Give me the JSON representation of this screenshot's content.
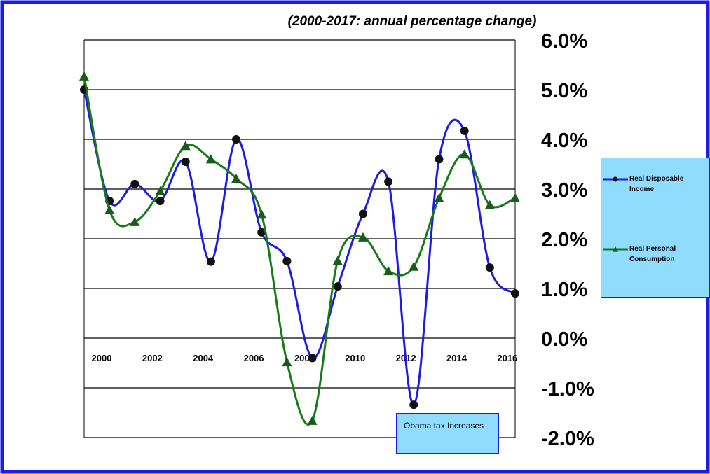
{
  "chart_data": {
    "type": "line",
    "title": "(2000-2017: annual percentage change)",
    "x": [
      2000,
      2001,
      2002,
      2003,
      2004,
      2005,
      2006,
      2007,
      2008,
      2009,
      2010,
      2011,
      2012,
      2013,
      2014,
      2015,
      2016,
      2017
    ],
    "xlim": [
      2000,
      2017
    ],
    "xticks": [
      2000,
      2002,
      2004,
      2006,
      2008,
      2010,
      2012,
      2014,
      2016
    ],
    "ylim": [
      -2,
      6
    ],
    "yticks": [
      {
        "value": -2,
        "label": "-2.0%"
      },
      {
        "value": -1,
        "label": "-1.0%"
      },
      {
        "value": 0,
        "label": "0.0%"
      },
      {
        "value": 1,
        "label": "1.0%"
      },
      {
        "value": 2,
        "label": "2.0%"
      },
      {
        "value": 3,
        "label": "3.0%"
      },
      {
        "value": 4,
        "label": "4.0%"
      },
      {
        "value": 5,
        "label": "5.0%"
      },
      {
        "value": 6,
        "label": "6.0%"
      }
    ],
    "grid": true,
    "legend": "right",
    "series": [
      {
        "name": "Real Disposable Income",
        "color": "#1c1ce6",
        "values": [
          5.0,
          2.76,
          3.1,
          2.76,
          3.55,
          1.54,
          4.0,
          2.13,
          1.55,
          -0.4,
          1.04,
          2.5,
          3.15,
          -1.34,
          3.6,
          4.17,
          1.42,
          0.9
        ]
      },
      {
        "name": "Real Personal Consumption",
        "color": "#1a7a1a",
        "values": [
          5.27,
          2.58,
          2.34,
          2.96,
          3.87,
          3.6,
          3.21,
          2.49,
          -0.48,
          -1.66,
          1.56,
          2.03,
          1.35,
          1.44,
          2.82,
          3.7,
          2.68,
          2.82
        ]
      }
    ],
    "annotation": "Obama tax Increases"
  }
}
